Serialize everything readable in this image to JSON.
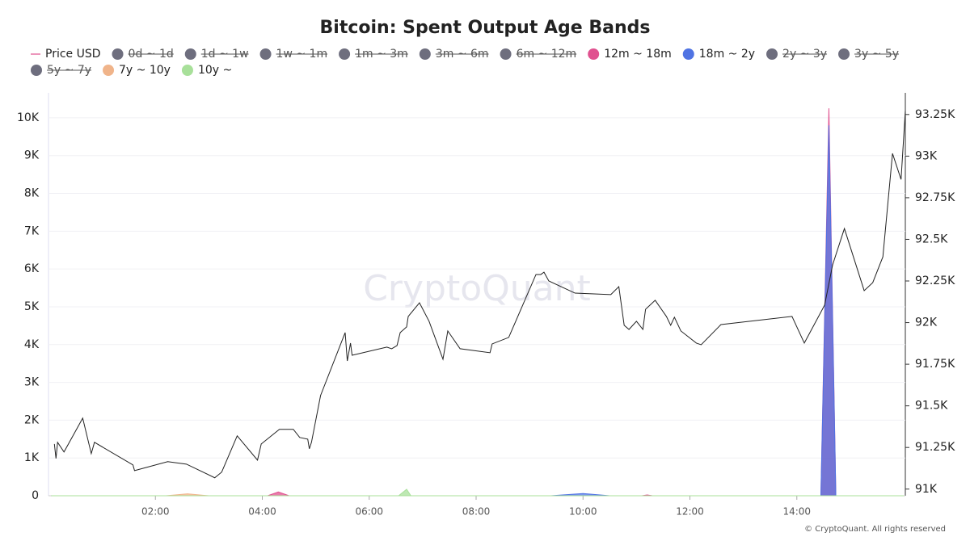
{
  "chart_data": {
    "type": "line",
    "title": "Bitcoin: Spent Output Age Bands",
    "watermark": "CryptoQuant",
    "copyright": "© CryptoQuant. All rights reserved",
    "xlim": [
      0,
      16.03
    ],
    "xticks": [
      {
        "value": 2,
        "label": "02:00"
      },
      {
        "value": 4,
        "label": "04:00"
      },
      {
        "value": 6,
        "label": "06:00"
      },
      {
        "value": 8,
        "label": "08:00"
      },
      {
        "value": 10,
        "label": "10:00"
      },
      {
        "value": 12,
        "label": "12:00"
      },
      {
        "value": 14,
        "label": "14:00"
      }
    ],
    "ylim": [
      0,
      10660
    ],
    "yticks": [
      0,
      {
        "value": 1000,
        "label": "1K"
      },
      {
        "value": 2000,
        "label": "2K"
      },
      {
        "value": 3000,
        "label": "3K"
      },
      {
        "value": 4000,
        "label": "4K"
      },
      {
        "value": 5000,
        "label": "5K"
      },
      {
        "value": 6000,
        "label": "6K"
      },
      {
        "value": 7000,
        "label": "7K"
      },
      {
        "value": 8000,
        "label": "8K"
      },
      {
        "value": 9000,
        "label": "9K"
      },
      {
        "value": 10000,
        "label": "10K"
      }
    ],
    "y2lim": [
      90960,
      93380
    ],
    "y2ticks": [
      {
        "value": 91000,
        "label": "91K"
      },
      {
        "value": 91250,
        "label": "91.25K"
      },
      {
        "value": 91500,
        "label": "91.5K"
      },
      {
        "value": 91750,
        "label": "91.75K"
      },
      {
        "value": 92000,
        "label": "92K"
      },
      {
        "value": 92250,
        "label": "92.25K"
      },
      {
        "value": 92500,
        "label": "92.5K"
      },
      {
        "value": 92750,
        "label": "92.75K"
      },
      {
        "value": 93000,
        "label": "93K"
      },
      {
        "value": 93250,
        "label": "93.25K"
      }
    ],
    "grid": true,
    "series": [
      {
        "name": "Price USD",
        "color": "#222222",
        "axis": "y2",
        "style": "line",
        "visible": true,
        "x": [
          0.11,
          0.14,
          0.17,
          0.29,
          0.64,
          0.8,
          0.86,
          1.58,
          1.61,
          2.23,
          2.58,
          3.11,
          3.24,
          3.53,
          3.91,
          3.98,
          4.32,
          4.58,
          4.7,
          4.85,
          4.88,
          4.92,
          5.09,
          5.55,
          5.59,
          5.65,
          5.68,
          6.33,
          6.42,
          6.52,
          6.58,
          6.7,
          6.73,
          6.94,
          7.12,
          7.38,
          7.47,
          7.7,
          8.26,
          8.3,
          8.61,
          9.12,
          9.21,
          9.27,
          9.36,
          9.85,
          10.52,
          10.67,
          10.77,
          10.86,
          11.0,
          11.12,
          11.17,
          11.35,
          11.56,
          11.64,
          11.71,
          11.83,
          12.12,
          12.21,
          12.58,
          13.91,
          14.14,
          14.52,
          14.67,
          14.89,
          15.26,
          15.42,
          15.61,
          15.79,
          15.95,
          16.03
        ],
        "values": [
          91271,
          91184,
          91281,
          91223,
          91426,
          91213,
          91281,
          91145,
          91111,
          91165,
          91150,
          91068,
          91102,
          91320,
          91174,
          91271,
          91359,
          91359,
          91310,
          91300,
          91242,
          91281,
          91562,
          91940,
          91770,
          91877,
          91804,
          91853,
          91843,
          91862,
          91940,
          91974,
          92037,
          92119,
          92008,
          91780,
          91950,
          91843,
          91819,
          91872,
          91911,
          92289,
          92289,
          92303,
          92250,
          92177,
          92168,
          92216,
          91984,
          91959,
          92008,
          91959,
          92080,
          92134,
          92037,
          91984,
          92032,
          91950,
          91877,
          91867,
          91988,
          92037,
          91877,
          92105,
          92347,
          92565,
          92192,
          92240,
          92395,
          93016,
          92860,
          93272
        ]
      },
      {
        "name": "0d ~ 1d",
        "color": "#6e6e7e",
        "visible": false
      },
      {
        "name": "1d ~ 1w",
        "color": "#6e6e7e",
        "visible": false
      },
      {
        "name": "1w ~ 1m",
        "color": "#6e6e7e",
        "visible": false
      },
      {
        "name": "1m ~ 3m",
        "color": "#6e6e7e",
        "visible": false
      },
      {
        "name": "3m ~ 6m",
        "color": "#6e6e7e",
        "visible": false
      },
      {
        "name": "6m ~ 12m",
        "color": "#6e6e7e",
        "visible": false
      },
      {
        "name": "12m ~ 18m",
        "color": "#e0518f",
        "style": "area",
        "visible": true,
        "x": [
          0.05,
          4.1,
          4.3,
          4.5,
          11.1,
          11.2,
          11.3,
          14.45,
          14.6,
          14.73,
          16.0
        ],
        "values": [
          0,
          0,
          100,
          0,
          0,
          20,
          0,
          0,
          10250,
          0,
          0
        ]
      },
      {
        "name": "18m ~ 2y",
        "color": "#4f73e3",
        "style": "area",
        "visible": true,
        "x": [
          0.05,
          9.4,
          10.0,
          10.5,
          14.45,
          14.6,
          14.73,
          16.0
        ],
        "values": [
          0,
          0,
          60,
          0,
          0,
          9800,
          0,
          0
        ]
      },
      {
        "name": "2y ~ 3y",
        "color": "#6e6e7e",
        "visible": false
      },
      {
        "name": "3y ~ 5y",
        "color": "#6e6e7e",
        "visible": false
      },
      {
        "name": "5y ~ 7y",
        "color": "#6e6e7e",
        "visible": false
      },
      {
        "name": "7y ~ 10y",
        "color": "#f0b48a",
        "style": "area",
        "visible": true,
        "x": [
          0.05,
          2.2,
          2.6,
          3.0,
          16.0
        ],
        "values": [
          0,
          0,
          50,
          0,
          0
        ]
      },
      {
        "name": "10y ~",
        "color": "#a8e09a",
        "style": "area",
        "visible": true,
        "x": [
          0.05,
          6.55,
          6.7,
          6.78,
          16.0
        ],
        "values": [
          0,
          0,
          170,
          0,
          0
        ]
      }
    ]
  }
}
